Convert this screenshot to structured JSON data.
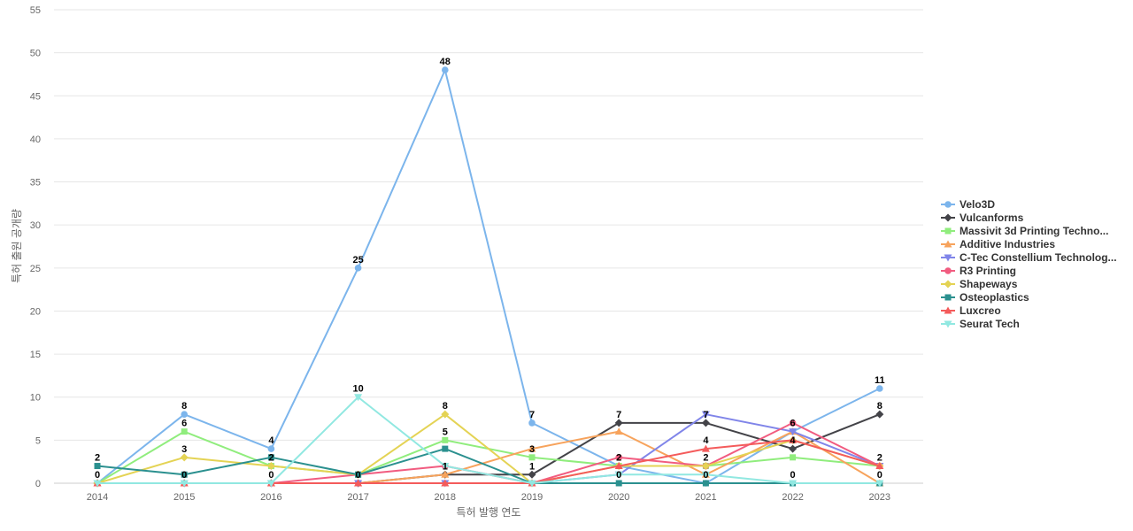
{
  "chart_data": {
    "type": "line",
    "title": "",
    "xlabel": "특허 발행 연도",
    "ylabel": "특허 출원 공개량",
    "x": [
      "2014",
      "2015",
      "2016",
      "2017",
      "2018",
      "2019",
      "2020",
      "2021",
      "2022",
      "2023"
    ],
    "ylim": [
      0,
      55
    ],
    "yticks": [
      0,
      5,
      10,
      15,
      20,
      25,
      30,
      35,
      40,
      45,
      50,
      55
    ],
    "grid": true,
    "legend_position": "right",
    "series": [
      {
        "name": "Velo3D",
        "color": "#7cb5ec",
        "marker": "circle",
        "values": [
          0,
          8,
          4,
          25,
          48,
          7,
          2,
          0,
          6,
          11
        ]
      },
      {
        "name": "Vulcanforms",
        "color": "#434348",
        "marker": "diamond",
        "values": [
          0,
          0,
          0,
          0,
          1,
          1,
          7,
          7,
          4,
          8
        ]
      },
      {
        "name": "Massivit 3d Printing Techno...",
        "color": "#90ed7d",
        "marker": "square",
        "values": [
          0,
          6,
          2,
          1,
          5,
          3,
          2,
          2,
          3,
          2
        ]
      },
      {
        "name": "Additive Industries",
        "color": "#f7a35c",
        "marker": "triangle",
        "values": [
          0,
          0,
          0,
          0,
          1,
          4,
          6,
          1,
          6,
          0
        ]
      },
      {
        "name": "C-Tec Constellium Technolog...",
        "color": "#8085e9",
        "marker": "triangle-down",
        "values": [
          0,
          0,
          0,
          0,
          0,
          0,
          1,
          8,
          6,
          2
        ]
      },
      {
        "name": "R3 Printing",
        "color": "#f15c80",
        "marker": "circle",
        "values": [
          0,
          0,
          0,
          1,
          2,
          0,
          3,
          2,
          7,
          2
        ]
      },
      {
        "name": "Shapeways",
        "color": "#e4d354",
        "marker": "diamond",
        "values": [
          0,
          3,
          2,
          1,
          8,
          0,
          2,
          2,
          5,
          2
        ]
      },
      {
        "name": "Osteoplastics",
        "color": "#2b908f",
        "marker": "square",
        "values": [
          2,
          1,
          3,
          1,
          4,
          0,
          0,
          0,
          0,
          0
        ]
      },
      {
        "name": "Luxcreo",
        "color": "#f45b5b",
        "marker": "triangle",
        "values": [
          0,
          0,
          0,
          0,
          0,
          0,
          2,
          4,
          5,
          2
        ]
      },
      {
        "name": "Seurat Tech",
        "color": "#91e8e1",
        "marker": "triangle-down",
        "values": [
          0,
          0,
          0,
          10,
          2,
          0,
          1,
          1,
          0,
          0
        ]
      }
    ],
    "data_labels": [
      {
        "x": "2014",
        "value": 2
      },
      {
        "x": "2014",
        "value": 0
      },
      {
        "x": "2015",
        "value": 8
      },
      {
        "x": "2015",
        "value": 6
      },
      {
        "x": "2015",
        "value": 3
      },
      {
        "x": "2015",
        "value": 0
      },
      {
        "x": "2016",
        "value": 4
      },
      {
        "x": "2016",
        "value": 2
      },
      {
        "x": "2016",
        "value": 0
      },
      {
        "x": "2017",
        "value": 25
      },
      {
        "x": "2017",
        "value": 10
      },
      {
        "x": "2017",
        "value": 0
      },
      {
        "x": "2018",
        "value": 48
      },
      {
        "x": "2018",
        "value": 8
      },
      {
        "x": "2018",
        "value": 5
      },
      {
        "x": "2018",
        "value": 1
      },
      {
        "x": "2019",
        "value": 7
      },
      {
        "x": "2019",
        "value": 3
      },
      {
        "x": "2019",
        "value": 1
      },
      {
        "x": "2020",
        "value": 7
      },
      {
        "x": "2020",
        "value": 2
      },
      {
        "x": "2020",
        "value": 0
      },
      {
        "x": "2021",
        "value": 7
      },
      {
        "x": "2021",
        "value": 4
      },
      {
        "x": "2021",
        "value": 2
      },
      {
        "x": "2021",
        "value": 0
      },
      {
        "x": "2022",
        "value": 6
      },
      {
        "x": "2022",
        "value": 4
      },
      {
        "x": "2022",
        "value": 0
      },
      {
        "x": "2023",
        "value": 11
      },
      {
        "x": "2023",
        "value": 8
      },
      {
        "x": "2023",
        "value": 2
      },
      {
        "x": "2023",
        "value": 0
      }
    ]
  }
}
